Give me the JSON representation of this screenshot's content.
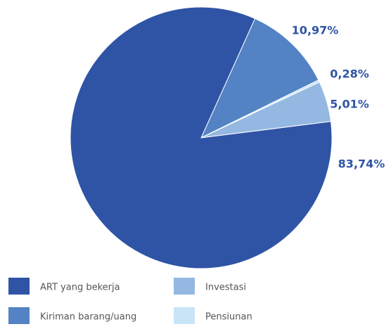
{
  "chart_data": {
    "type": "pie",
    "categories": [
      "Kiriman barang/uang",
      "Pensiunan",
      "Investasi",
      "ART yang bekerja"
    ],
    "values": [
      10.97,
      0.28,
      5.01,
      83.74
    ],
    "value_labels": [
      "10,97%",
      "0,28%",
      "5,01%",
      "83,74%"
    ],
    "colors": [
      "#5383c4",
      "#c9e4f7",
      "#94b8e2",
      "#2f54a6"
    ]
  }
}
